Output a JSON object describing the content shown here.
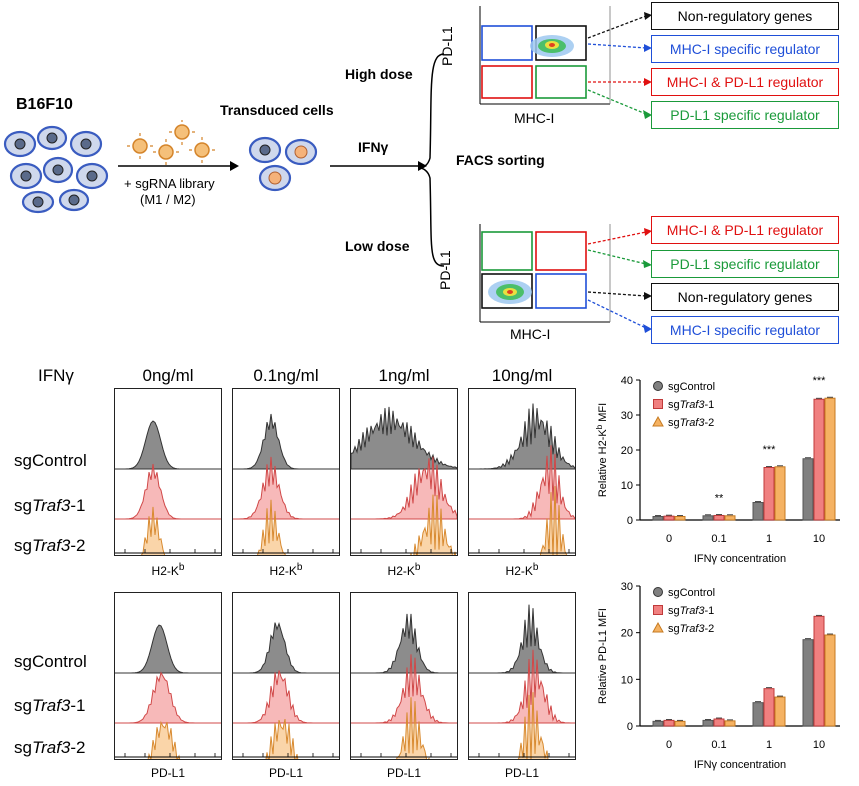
{
  "schematic": {
    "cell_line": "B16F10",
    "library_line1": "+ sgRNA library",
    "library_line2": "(M1 / M2)",
    "transduced": "Transduced cells",
    "treatment": "IFNγ",
    "high_dose": "High dose",
    "low_dose": "Low dose",
    "facs": "FACS sorting",
    "y_axis": "PD-L1",
    "x_axis": "MHC-I",
    "high_outputs": [
      "Non-regulatory genes",
      "MHC-I specific regulator",
      "MHC-I & PD-L1 regulator",
      "PD-L1 specific regulator"
    ],
    "low_outputs": [
      "MHC-I & PD-L1 regulator",
      "PD-L1 specific regulator",
      "Non-regulatory genes",
      "MHC-I specific regulator"
    ]
  },
  "histograms": {
    "treatment_label": "IFNγ",
    "concentrations": [
      "0ng/ml",
      "0.1ng/ml",
      "1ng/ml",
      "10ng/ml"
    ],
    "rows": [
      {
        "prefix": "sg",
        "name": "Control",
        "suffix": ""
      },
      {
        "prefix": "sg",
        "name": "Traf3",
        "suffix": "-1"
      },
      {
        "prefix": "sg",
        "name": "Traf3",
        "suffix": "-2"
      }
    ],
    "top_marker": "H2-K",
    "top_marker_sup": "b",
    "bottom_marker": "PD-L1"
  },
  "colors": {
    "control": "#808080",
    "traf3_1": "#f08080",
    "traf3_2": "#f5b262",
    "blue": "#1f4fd8",
    "red": "#e01010",
    "green": "#1a9a3a"
  },
  "chart_data": [
    {
      "type": "bar",
      "title": "",
      "xlabel": "IFNγ concentration",
      "ylabel_prefix": "Relative H2-K",
      "ylabel_sup": "b",
      "ylabel_suffix": " MFI",
      "categories": [
        "0",
        "0.1",
        "1",
        "10"
      ],
      "ylim": [
        0,
        40
      ],
      "yticks": [
        "0",
        "10",
        "20",
        "30",
        "40"
      ],
      "series": [
        {
          "name": "sgControl",
          "values": [
            1,
            1.2,
            5,
            17.5
          ]
        },
        {
          "name": "sgTraf3-1",
          "values": [
            1.1,
            1.3,
            15,
            34.5
          ]
        },
        {
          "name": "sgTraf3-2",
          "values": [
            1,
            1.2,
            15.2,
            34.8
          ]
        }
      ],
      "significance": [
        "",
        "**",
        "***",
        "***"
      ],
      "legend": [
        "sgControl",
        "sgTraf3-1",
        "sgTraf3-2"
      ]
    },
    {
      "type": "bar",
      "title": "",
      "xlabel": "IFNγ concentration",
      "ylabel_prefix": "Relative PD-L1 MFI",
      "ylabel_sup": "",
      "ylabel_suffix": "",
      "categories": [
        "0",
        "0.1",
        "1",
        "10"
      ],
      "ylim": [
        0,
        30
      ],
      "yticks": [
        "0",
        "10",
        "20",
        "30"
      ],
      "series": [
        {
          "name": "sgControl",
          "values": [
            1,
            1.2,
            5,
            18.5
          ]
        },
        {
          "name": "sgTraf3-1",
          "values": [
            1.2,
            1.5,
            8,
            23.5
          ]
        },
        {
          "name": "sgTraf3-2",
          "values": [
            1,
            1.1,
            6.2,
            19.5
          ]
        }
      ],
      "significance": [
        "",
        "",
        "",
        ""
      ],
      "legend": [
        "sgControl",
        "sgTraf3-1",
        "sgTraf3-2"
      ]
    }
  ]
}
